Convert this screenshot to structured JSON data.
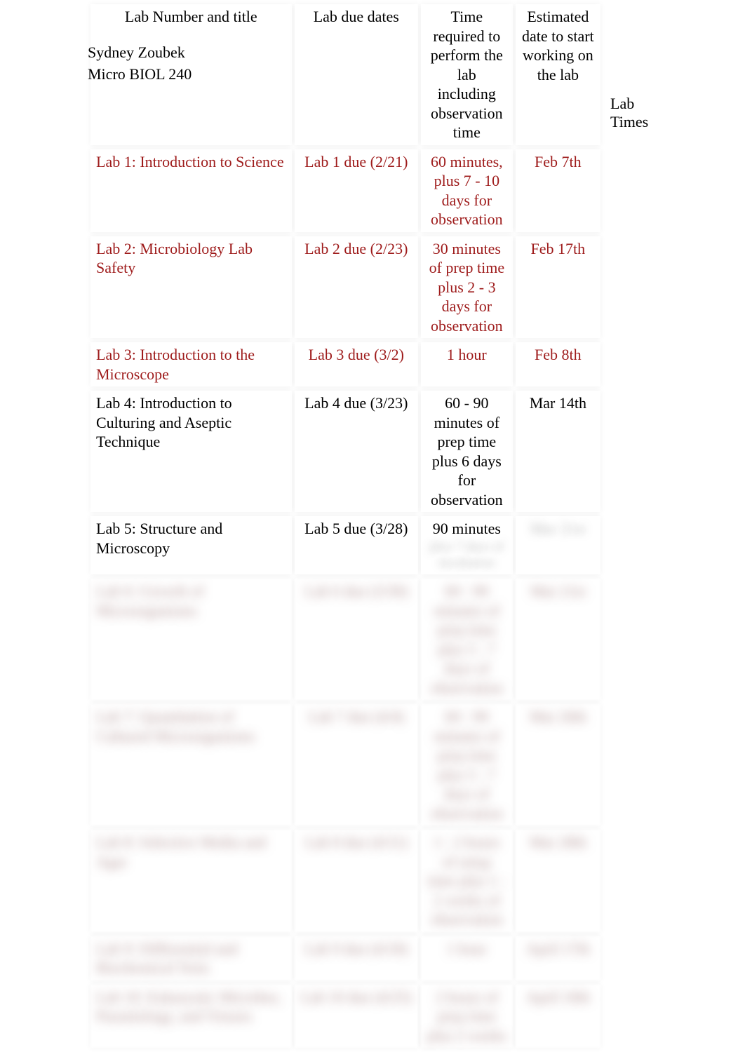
{
  "side_label_line1": "Lab",
  "side_label_line2": "Times",
  "student_name": "Sydney Zoubek",
  "course": "Micro BIOL 240",
  "headers": {
    "title": "Lab Number and title",
    "due": "Lab due dates",
    "time": "Time required to perform the lab including observation time",
    "start": "Estimated date to start working on the lab"
  },
  "rows": [
    {
      "title": "Lab 1: Introduction to Science",
      "due": "Lab 1 due (2/21)",
      "time": "60 minutes, plus 7 - 10 days for observation",
      "start": "Feb 7th",
      "color": "red",
      "faded": false
    },
    {
      "title": "Lab 2: Microbiology Lab Safety",
      "due": "Lab 2 due (2/23)",
      "time": "30 minutes of prep time plus 2 - 3 days for observation",
      "start": "Feb 17th",
      "color": "red",
      "faded": false
    },
    {
      "title": "Lab 3: Introduction to the Microscope",
      "due": "Lab 3 due (3/2)",
      "time": "1 hour",
      "start": "Feb 8th",
      "color": "red",
      "faded": false
    },
    {
      "title": "Lab 4: Introduction to Culturing and Aseptic Technique",
      "due": "Lab 4 due (3/23)",
      "time": "60 - 90 minutes of prep time plus 6 days for observation",
      "start": "Mar 14th",
      "color": "black",
      "faded": false
    },
    {
      "title": "Lab 5: Structure and Microscopy",
      "due": "Lab 5 due (3/28)",
      "time": "90 minutes",
      "time_sub": "plus 7 days of incubation",
      "start": "Mar 21st",
      "color": "black",
      "faded": false,
      "fade_start": true
    },
    {
      "title": "Lab 6: Growth of Microorganisms",
      "due": "Lab 6 due (3/30)",
      "time": "60 - 90 minutes of prep time plus 5 - 7 days of observation",
      "start": "Mar 21st",
      "color": "black",
      "faded": true
    },
    {
      "title": "Lab 7: Quantitation of Cultured Microorganisms",
      "due": "Lab 7 due (4/4)",
      "time": "60 - 90 minutes of prep time plus 5 - 7 days of observation",
      "start": "Mar 26th",
      "color": "black",
      "faded": true
    },
    {
      "title": "Lab 8: Selective Media and Agar",
      "due": "Lab 8 due (4/11)",
      "time": "1 - 2 hours of setup time plus 1 - 2 weeks of observation",
      "start": "Mar 28th",
      "color": "black",
      "faded": true
    },
    {
      "title": "Lab 9: Differential and Biochemical Tests",
      "due": "Lab 9 due (4/18)",
      "time": "1 hour",
      "start": "April 17th",
      "color": "black",
      "faded": true
    },
    {
      "title": "Lab 10: Eukaryotic Microbes, Parasitology, and Viruses",
      "due": "Lab 10 due (4/25)",
      "time": "2 hours of prep time plus 2 weeks",
      "start": "April 10th",
      "color": "black",
      "faded": true
    }
  ]
}
